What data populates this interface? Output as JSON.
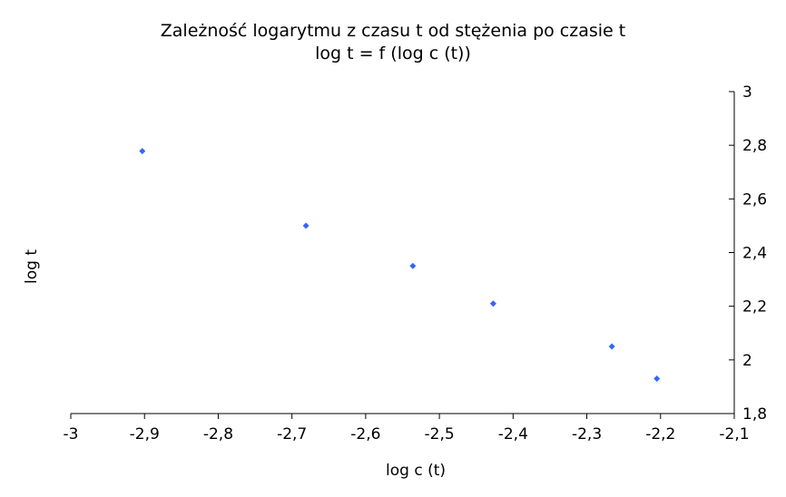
{
  "chart_data": {
    "type": "scatter",
    "title": "Zależność logarytmu z czasu t od stężenia po czasie t",
    "subtitle": "log t = f (log c (t))",
    "xlabel": "log c (t)",
    "ylabel": "log t",
    "xlim": [
      -3,
      -2.1
    ],
    "ylim": [
      1.8,
      3
    ],
    "x_ticks": [
      "-3",
      "-2,9",
      "-2,8",
      "-2,7",
      "-2,6",
      "-2,5",
      "-2,4",
      "-2,3",
      "-2,2",
      "-2,1"
    ],
    "y_ticks": [
      "1,8",
      "2",
      "2,2",
      "2,4",
      "2,6",
      "2,8",
      "3"
    ],
    "y_axis_position": "right",
    "grid": false,
    "legend": "none",
    "marker_color": "#3366ff",
    "x": [
      -2.903,
      -2.681,
      -2.536,
      -2.427,
      -2.266,
      -2.205
    ],
    "y": [
      2.778,
      2.5,
      2.35,
      2.21,
      2.05,
      1.93
    ]
  }
}
